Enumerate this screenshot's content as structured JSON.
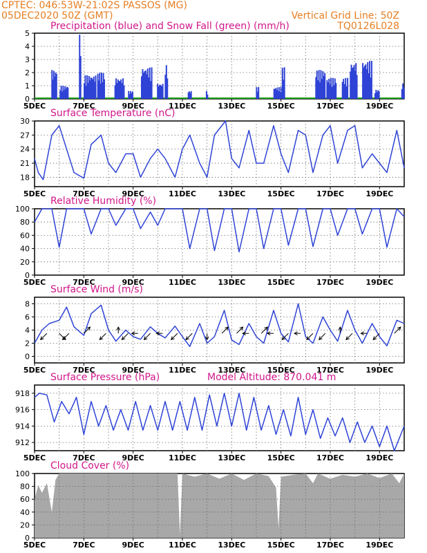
{
  "header": {
    "line1": "CPTEC:   046:53W-21:02S  PASSOS (MG)",
    "line2": "05DEC2020 50Z (GMT)",
    "grid_note": "Vertical Grid Line: 50Z",
    "model_code": "TQ0126L028",
    "altitude": "Model Altitude: 870.041 m"
  },
  "colors": {
    "header_orange": "#e67e22",
    "title_magenta": "#d0168a",
    "series_blue": "#2e43d6",
    "snow_green": "#1fa31f",
    "cloud_gray": "#a8a8a8",
    "grid": "#6a6a6a"
  },
  "chart_data": [
    {
      "id": "precip",
      "type": "bar",
      "title": "Precipitation (blue) and Snow Fall (green) (mm/h)",
      "ylim": [
        0,
        5
      ],
      "yticks": [
        0,
        1,
        2,
        3,
        4,
        5
      ],
      "x_labels": [
        "5DEC",
        "7DEC",
        "9DEC",
        "11DEC",
        "13DEC",
        "15DEC",
        "17DEC",
        "19DEC"
      ],
      "x_range_days": [
        5,
        20
      ],
      "grid": true,
      "series": [
        {
          "name": "Precipitation",
          "bars": [
            {
              "day": 5.8,
              "width": 0.22,
              "height": 2.2
            },
            {
              "day": 6.2,
              "width": 0.35,
              "height": 1.0
            },
            {
              "day": 6.85,
              "width": 0.08,
              "height": 4.9
            },
            {
              "day": 7.25,
              "width": 0.5,
              "height": 1.8
            },
            {
              "day": 7.7,
              "width": 0.3,
              "height": 2.0
            },
            {
              "day": 8.45,
              "width": 0.4,
              "height": 1.6
            },
            {
              "day": 8.9,
              "width": 0.2,
              "height": 0.6
            },
            {
              "day": 9.55,
              "width": 0.45,
              "height": 2.4
            },
            {
              "day": 10.1,
              "width": 0.25,
              "height": 1.2
            },
            {
              "day": 10.35,
              "width": 0.12,
              "height": 2.6
            },
            {
              "day": 11.3,
              "width": 0.15,
              "height": 0.6
            },
            {
              "day": 12.0,
              "width": 0.08,
              "height": 0.6
            },
            {
              "day": 14.05,
              "width": 0.12,
              "height": 0.9
            },
            {
              "day": 14.9,
              "width": 0.4,
              "height": 0.9
            },
            {
              "day": 15.1,
              "width": 0.12,
              "height": 2.4
            },
            {
              "day": 16.6,
              "width": 0.4,
              "height": 2.2
            },
            {
              "day": 17.05,
              "width": 0.4,
              "height": 1.6
            },
            {
              "day": 17.6,
              "width": 0.25,
              "height": 1.6
            },
            {
              "day": 17.95,
              "width": 0.3,
              "height": 2.8
            },
            {
              "day": 18.5,
              "width": 0.4,
              "height": 2.9
            },
            {
              "day": 18.9,
              "width": 0.2,
              "height": 0.7
            },
            {
              "day": 19.95,
              "width": 0.12,
              "height": 1.2
            }
          ]
        },
        {
          "name": "Snow Fall",
          "values": "zero"
        }
      ]
    },
    {
      "id": "temp",
      "type": "line",
      "title": "Surface Temperature (nC)",
      "ylim": [
        16,
        30
      ],
      "yticks": [
        18,
        21,
        24,
        27,
        30
      ],
      "x_labels": [
        "5DEC",
        "7DEC",
        "9DEC",
        "11DEC",
        "13DEC",
        "15DEC",
        "17DEC",
        "19DEC"
      ],
      "x_range_days": [
        5,
        20
      ],
      "grid": true,
      "x": [
        5.0,
        5.15,
        5.35,
        5.7,
        6.0,
        6.3,
        6.6,
        7.0,
        7.3,
        7.7,
        8.0,
        8.3,
        8.7,
        9.0,
        9.3,
        9.7,
        10.0,
        10.3,
        10.7,
        11.0,
        11.3,
        11.7,
        12.0,
        12.3,
        12.75,
        13.0,
        13.3,
        13.7,
        14.0,
        14.3,
        14.7,
        15.0,
        15.3,
        15.7,
        16.0,
        16.3,
        16.7,
        17.0,
        17.3,
        17.7,
        18.0,
        18.3,
        18.7,
        19.0,
        19.3,
        19.7,
        20.0
      ],
      "y": [
        22,
        19,
        17.5,
        27,
        29,
        24,
        19,
        17.8,
        25,
        27,
        21,
        19,
        23,
        23,
        18,
        22,
        24,
        22,
        18,
        24,
        27,
        21,
        18,
        27,
        30,
        22,
        20,
        28,
        21,
        21,
        29,
        23,
        19,
        28,
        27,
        19,
        27,
        29,
        21,
        28,
        29,
        20,
        23,
        21,
        19,
        28,
        20
      ]
    },
    {
      "id": "rh",
      "type": "line",
      "title": "Relative Humidity (%)",
      "ylim": [
        0,
        100
      ],
      "yticks": [
        0,
        20,
        40,
        60,
        80,
        100
      ],
      "x_labels": [
        "5DEC",
        "7DEC",
        "9DEC",
        "11DEC",
        "13DEC",
        "15DEC",
        "17DEC",
        "19DEC"
      ],
      "x_range_days": [
        5,
        20
      ],
      "grid": true,
      "x": [
        5.0,
        5.3,
        5.7,
        6.0,
        6.3,
        6.6,
        7.0,
        7.3,
        7.7,
        8.0,
        8.3,
        8.7,
        9.0,
        9.3,
        9.7,
        10.0,
        10.3,
        10.7,
        11.0,
        11.3,
        11.7,
        12.0,
        12.3,
        12.7,
        13.0,
        13.3,
        13.7,
        14.0,
        14.3,
        14.7,
        15.0,
        15.3,
        15.7,
        16.0,
        16.3,
        16.7,
        17.0,
        17.3,
        17.7,
        18.0,
        18.3,
        18.7,
        19.0,
        19.3,
        19.7,
        20.0
      ],
      "y": [
        80,
        100,
        100,
        42,
        100,
        100,
        100,
        62,
        100,
        100,
        75,
        100,
        100,
        70,
        95,
        75,
        100,
        100,
        100,
        40,
        100,
        100,
        37,
        100,
        100,
        35,
        100,
        100,
        40,
        100,
        100,
        45,
        100,
        100,
        43,
        100,
        100,
        60,
        100,
        100,
        62,
        100,
        100,
        42,
        100,
        88
      ]
    },
    {
      "id": "wind",
      "type": "line",
      "title": "Surface Wind (m/s)",
      "ylim": [
        -1,
        9
      ],
      "yticks": [
        0,
        2,
        4,
        6,
        8
      ],
      "x_labels": [
        "5DEC",
        "7DEC",
        "9DEC",
        "11DEC",
        "13DEC",
        "15DEC",
        "17DEC",
        "19DEC"
      ],
      "x_range_days": [
        5,
        20
      ],
      "grid": true,
      "x": [
        5.0,
        5.3,
        5.6,
        6.0,
        6.3,
        6.6,
        7.0,
        7.3,
        7.7,
        8.0,
        8.3,
        8.7,
        9.0,
        9.3,
        9.7,
        10.0,
        10.3,
        10.7,
        11.0,
        11.3,
        11.7,
        12.0,
        12.3,
        12.7,
        13.0,
        13.3,
        13.7,
        14.0,
        14.3,
        14.7,
        15.0,
        15.3,
        15.7,
        16.0,
        16.3,
        16.7,
        17.0,
        17.3,
        17.7,
        18.0,
        18.3,
        18.7,
        19.0,
        19.3,
        19.7,
        20.0
      ],
      "y": [
        2,
        4,
        5,
        5.5,
        7.5,
        4.5,
        3.2,
        6.5,
        7.8,
        4,
        2.3,
        4,
        3,
        2.6,
        4.5,
        3.5,
        2.8,
        4.6,
        3,
        1.5,
        5,
        2,
        3,
        7,
        2.5,
        1.8,
        5,
        3,
        2,
        7,
        3.5,
        2.2,
        8,
        3,
        2,
        6,
        4,
        2.3,
        7,
        4,
        2,
        5,
        3,
        1.6,
        5.5,
        5
      ]
    },
    {
      "id": "pressure",
      "type": "line",
      "title": "Surface Pressure (hPa)",
      "ylim": [
        911,
        919
      ],
      "yticks": [
        912,
        914,
        916,
        918
      ],
      "x_labels": [
        "5DEC",
        "7DEC",
        "9DEC",
        "11DEC",
        "13DEC",
        "15DEC",
        "17DEC",
        "19DEC"
      ],
      "x_range_days": [
        5,
        20
      ],
      "grid": true,
      "x": [
        5.0,
        5.2,
        5.5,
        5.8,
        6.1,
        6.4,
        6.7,
        7.0,
        7.3,
        7.6,
        7.9,
        8.2,
        8.5,
        8.8,
        9.1,
        9.4,
        9.7,
        10.0,
        10.3,
        10.6,
        10.9,
        11.2,
        11.5,
        11.8,
        12.1,
        12.4,
        12.7,
        13.0,
        13.3,
        13.6,
        13.9,
        14.2,
        14.5,
        14.8,
        15.1,
        15.4,
        15.7,
        16.0,
        16.3,
        16.6,
        16.9,
        17.2,
        17.5,
        17.8,
        18.1,
        18.4,
        18.7,
        19.0,
        19.3,
        19.6,
        20.0
      ],
      "y": [
        917.5,
        918,
        917.8,
        914.5,
        917,
        915.5,
        917.5,
        913,
        917,
        914,
        916.5,
        913.5,
        916,
        913.5,
        917,
        913.5,
        916.5,
        913.5,
        917,
        913.5,
        917,
        913.5,
        917.5,
        913.5,
        917.8,
        914,
        918,
        914,
        918,
        913.5,
        917.5,
        913.5,
        916.5,
        913,
        916,
        912.8,
        917.5,
        913,
        916,
        912.5,
        915,
        912.8,
        915,
        912,
        914.5,
        912,
        914,
        911.5,
        914,
        911,
        914
      ]
    },
    {
      "id": "cloud",
      "type": "area",
      "title": "Cloud Cover (%)",
      "ylim": [
        0,
        100
      ],
      "yticks": [
        0,
        20,
        40,
        60,
        80,
        100
      ],
      "x_labels": [
        "5DEC",
        "7DEC",
        "9DEC",
        "11DEC",
        "13DEC",
        "15DEC",
        "17DEC",
        "19DEC"
      ],
      "x_range_days": [
        5,
        20
      ],
      "grid": true,
      "x": [
        5.0,
        5.15,
        5.3,
        5.5,
        5.7,
        5.85,
        6.0,
        6.5,
        7.0,
        8.0,
        9.0,
        10.0,
        10.8,
        10.9,
        11.0,
        11.5,
        12.0,
        12.5,
        13.0,
        13.5,
        14.0,
        14.5,
        14.8,
        14.9,
        15.0,
        15.5,
        16.0,
        16.3,
        16.5,
        17.0,
        17.5,
        18.0,
        18.5,
        19.0,
        19.5,
        19.8,
        20.0
      ],
      "y": [
        60,
        82,
        70,
        85,
        40,
        90,
        100,
        100,
        100,
        100,
        100,
        100,
        100,
        5,
        100,
        95,
        100,
        92,
        100,
        90,
        100,
        96,
        78,
        15,
        95,
        98,
        100,
        85,
        100,
        92,
        98,
        95,
        100,
        93,
        100,
        85,
        100
      ]
    }
  ],
  "wind_arrows": [
    {
      "day": 5.5,
      "dx": 1,
      "dy": 1
    },
    {
      "day": 6.0,
      "dx": -1,
      "dy": 1
    },
    {
      "day": 6.4,
      "dx": 1,
      "dy": 1
    },
    {
      "day": 7.0,
      "dx": -1,
      "dy": -1
    },
    {
      "day": 7.9,
      "dx": 1,
      "dy": 1
    },
    {
      "day": 8.4,
      "dx": 0,
      "dy": -1
    },
    {
      "day": 8.8,
      "dx": 1,
      "dy": 1
    },
    {
      "day": 9.2,
      "dx": 1,
      "dy": 0
    },
    {
      "day": 9.7,
      "dx": 1,
      "dy": 1
    },
    {
      "day": 10.2,
      "dx": 1,
      "dy": 0
    },
    {
      "day": 10.8,
      "dx": 1,
      "dy": 1
    },
    {
      "day": 11.4,
      "dx": 1,
      "dy": 1
    },
    {
      "day": 12.0,
      "dx": 0,
      "dy": 1
    },
    {
      "day": 12.6,
      "dx": -1,
      "dy": -1
    },
    {
      "day": 13.2,
      "dx": -1,
      "dy": -1
    },
    {
      "day": 13.7,
      "dx": 1,
      "dy": 0
    },
    {
      "day": 14.2,
      "dx": -1,
      "dy": -1
    },
    {
      "day": 14.7,
      "dx": 1,
      "dy": 0
    },
    {
      "day": 15.3,
      "dx": 1,
      "dy": 1
    },
    {
      "day": 15.8,
      "dx": 1,
      "dy": 0
    },
    {
      "day": 16.3,
      "dx": 1,
      "dy": 1
    },
    {
      "day": 16.8,
      "dx": 1,
      "dy": 1
    },
    {
      "day": 17.4,
      "dx": 0,
      "dy": -1
    },
    {
      "day": 17.9,
      "dx": 1,
      "dy": 1
    },
    {
      "day": 18.5,
      "dx": 1,
      "dy": 0
    },
    {
      "day": 19.0,
      "dx": 1,
      "dy": 1
    },
    {
      "day": 19.6,
      "dx": -1,
      "dy": -1
    }
  ]
}
